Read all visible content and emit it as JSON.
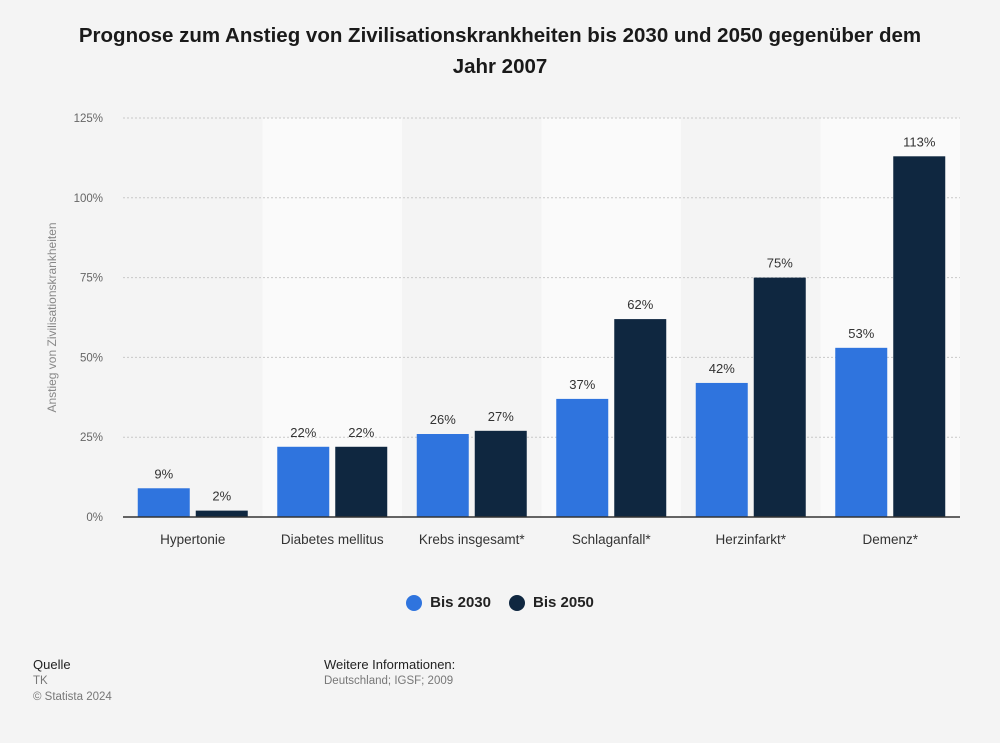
{
  "chart_data": {
    "type": "bar",
    "title": "Prognose zum Anstieg von Zivilisationskrankheiten bis 2030 und 2050 gegenüber dem Jahr 2007",
    "ylabel": "Anstieg von Zivilisationskrankheiten",
    "ylim": [
      0,
      125
    ],
    "yticks": [
      0,
      25,
      50,
      75,
      100,
      125
    ],
    "ytick_labels": [
      "0%",
      "25%",
      "50%",
      "75%",
      "100%",
      "125%"
    ],
    "grid": true,
    "legend_position": "bottom-center",
    "categories": [
      "Hypertonie",
      "Diabetes mellitus",
      "Krebs insgesamt*",
      "Schlaganfall*",
      "Herzinfarkt*",
      "Demenz*"
    ],
    "series": [
      {
        "name": "Bis 2030",
        "color": "#2f74de",
        "values": [
          9,
          22,
          26,
          37,
          42,
          53
        ],
        "labels": [
          "9%",
          "22%",
          "26%",
          "37%",
          "42%",
          "53%"
        ]
      },
      {
        "name": "Bis 2050",
        "color": "#0f2740",
        "values": [
          2,
          22,
          27,
          62,
          75,
          113
        ],
        "labels": [
          "2%",
          "22%",
          "27%",
          "62%",
          "75%",
          "113%"
        ]
      }
    ]
  },
  "footer": {
    "source_heading": "Quelle",
    "source": "TK",
    "copyright": "© Statista 2024",
    "info_heading": "Weitere Informationen:",
    "info": "Deutschland; IGSF; 2009"
  }
}
